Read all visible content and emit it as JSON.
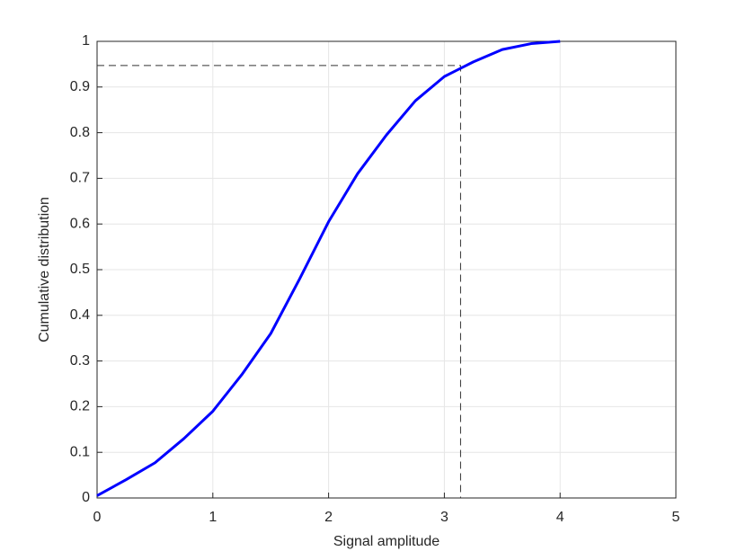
{
  "chart_data": {
    "type": "line",
    "xlabel": "Signal amplitude",
    "ylabel": "Cumulative distribution",
    "x": [
      0,
      0.25,
      0.5,
      0.75,
      1,
      1.25,
      1.5,
      1.75,
      2,
      2.25,
      2.5,
      2.75,
      3,
      3.25,
      3.5,
      3.75,
      4
    ],
    "series": [
      {
        "color": "#0000ff",
        "values": [
          0.005,
          0.04,
          0.077,
          0.13,
          0.19,
          0.27,
          0.36,
          0.48,
          0.605,
          0.71,
          0.795,
          0.87,
          0.923,
          0.955,
          0.982,
          0.995,
          1.0
        ]
      }
    ],
    "reference": {
      "x": 3.14,
      "y": 0.947
    },
    "xlim": [
      0,
      5
    ],
    "ylim": [
      0,
      1
    ],
    "xticks": [
      0,
      1,
      2,
      3,
      4,
      5
    ],
    "yticks": [
      0,
      0.1,
      0.2,
      0.3,
      0.4,
      0.5,
      0.6,
      0.7,
      0.8,
      0.9,
      1
    ],
    "grid": true
  }
}
